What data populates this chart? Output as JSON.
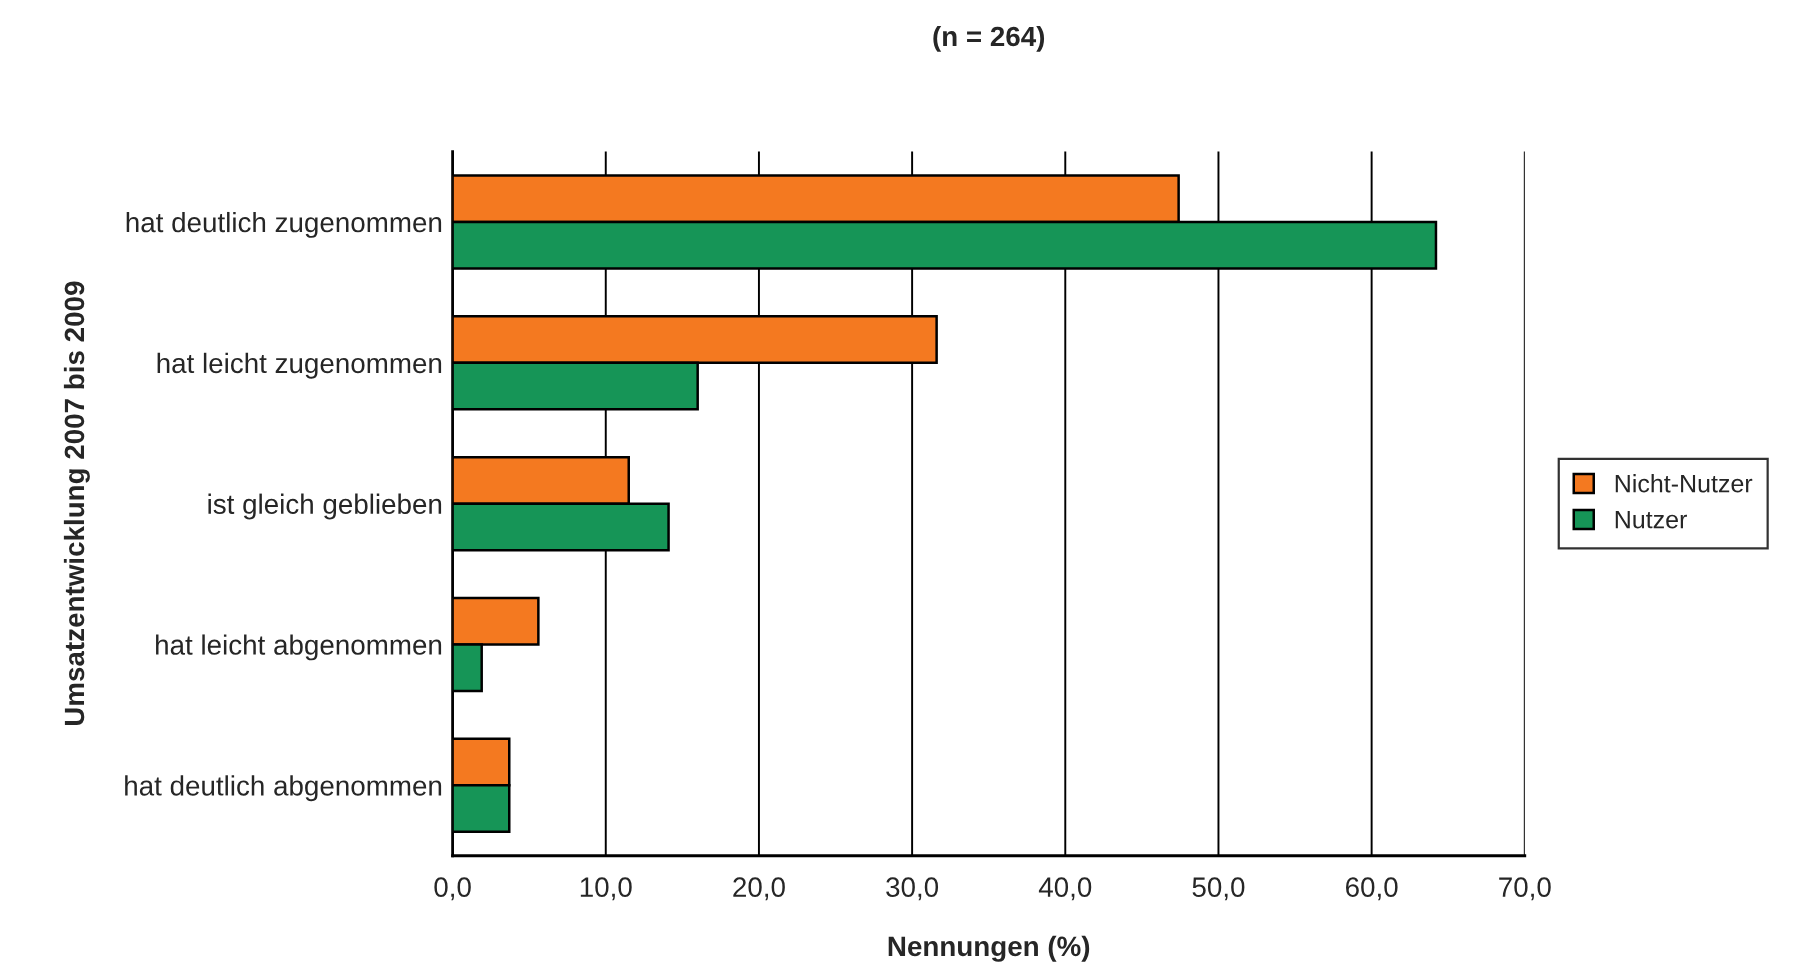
{
  "chart_data": {
    "type": "bar",
    "orientation": "horizontal",
    "title": "(n = 264)",
    "xlabel": "Nennungen (%)",
    "ylabel": "Umsatzentwicklung 2007 bis 2009",
    "categories": [
      "hat deutlich zugenommen",
      "hat leicht zugenommen",
      "ist gleich geblieben",
      "hat leicht abgenommen",
      "hat deutlich abgenommen"
    ],
    "series": [
      {
        "name": "Nicht-Nutzer",
        "color": "#f47920",
        "values": [
          47.4,
          31.6,
          11.5,
          5.6,
          3.7
        ]
      },
      {
        "name": "Nutzer",
        "color": "#169557",
        "values": [
          64.2,
          16.0,
          14.1,
          1.9,
          3.7
        ]
      }
    ],
    "xlim": [
      0,
      70
    ],
    "xticks": [
      {
        "value": 0,
        "label": "0,0"
      },
      {
        "value": 10,
        "label": "10,0"
      },
      {
        "value": 20,
        "label": "20,0"
      },
      {
        "value": 30,
        "label": "30,0"
      },
      {
        "value": 40,
        "label": "40,0"
      },
      {
        "value": 50,
        "label": "50,0"
      },
      {
        "value": 60,
        "label": "60,0"
      },
      {
        "value": 70,
        "label": "70,0"
      }
    ],
    "grid": "x",
    "legend": "right"
  }
}
